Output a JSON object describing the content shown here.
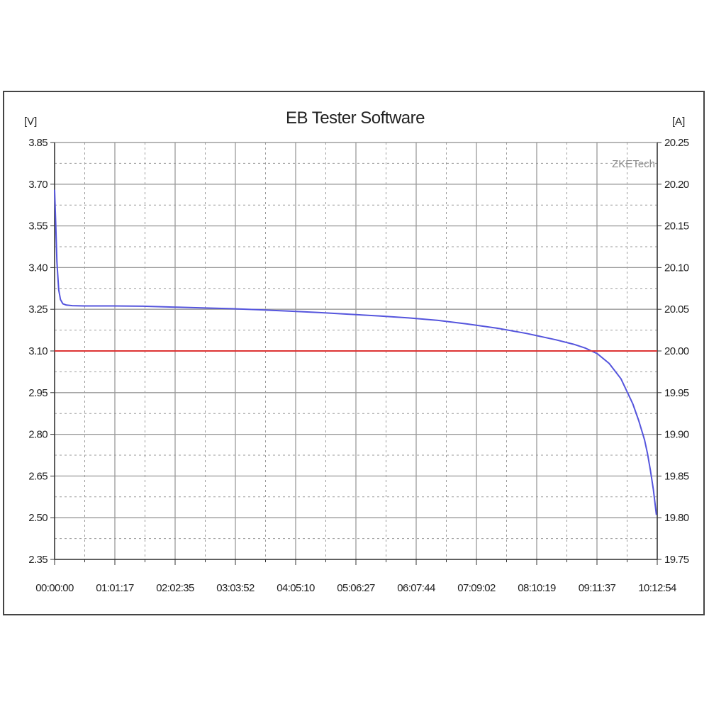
{
  "chart_data": {
    "type": "line",
    "title": "EB Tester Software",
    "y_left_unit": "[V]",
    "y_right_unit": "[A]",
    "watermark": "ZKETech",
    "grid": true,
    "y_left_ticks": [
      "3.85",
      "3.70",
      "3.55",
      "3.40",
      "3.25",
      "3.10",
      "2.95",
      "2.80",
      "2.65",
      "2.50",
      "2.35"
    ],
    "y_right_ticks": [
      "20.25",
      "20.20",
      "20.15",
      "20.10",
      "20.05",
      "20.00",
      "19.95",
      "19.90",
      "19.85",
      "19.80",
      "19.75"
    ],
    "x_ticks": [
      "00:00:00",
      "01:01:17",
      "02:02:35",
      "03:03:52",
      "04:05:10",
      "05:06:27",
      "06:07:44",
      "07:09:02",
      "08:10:19",
      "09:11:37",
      "10:12:54"
    ],
    "y_left_range": [
      2.35,
      3.85
    ],
    "y_right_range": [
      19.75,
      20.25
    ],
    "x_range_hours": [
      0,
      10.215
    ],
    "colors": {
      "voltage": "#5555dd",
      "current": "#dd3333",
      "grid": "#9a9a9a",
      "frame": "#444444"
    },
    "series": [
      {
        "axis": "left",
        "x_hours": [
          0,
          0.02,
          0.04,
          0.07,
          0.1,
          0.14,
          0.2,
          0.3,
          0.5,
          1.0,
          1.5,
          2.0,
          2.5,
          3.0,
          3.5,
          4.0,
          4.5,
          5.0,
          5.5,
          6.0,
          6.5,
          7.0,
          7.5,
          8.0,
          8.5,
          8.8,
          9.0,
          9.2,
          9.4,
          9.6,
          9.8,
          9.9,
          10.0,
          10.05,
          10.1,
          10.15,
          10.2
        ],
        "values": [
          3.68,
          3.55,
          3.42,
          3.32,
          3.285,
          3.27,
          3.265,
          3.263,
          3.262,
          3.262,
          3.261,
          3.258,
          3.255,
          3.252,
          3.248,
          3.243,
          3.238,
          3.232,
          3.226,
          3.219,
          3.21,
          3.197,
          3.182,
          3.163,
          3.14,
          3.124,
          3.11,
          3.09,
          3.055,
          3.0,
          2.91,
          2.85,
          2.78,
          2.73,
          2.67,
          2.6,
          2.51
        ]
      },
      {
        "axis": "right",
        "x_hours": [
          0,
          10.215
        ],
        "values": [
          20.0,
          20.0
        ]
      }
    ]
  }
}
